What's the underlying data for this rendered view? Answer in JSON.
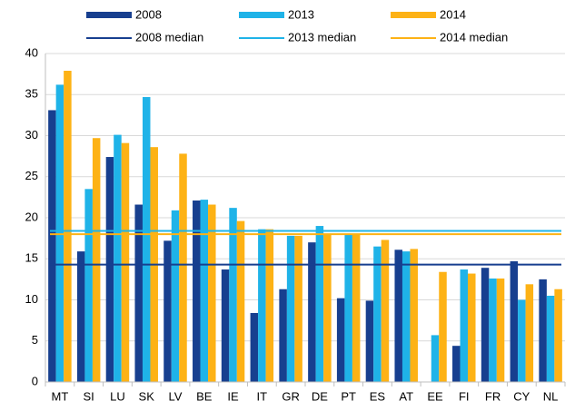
{
  "chart_data": {
    "type": "bar",
    "categories": [
      "MT",
      "SI",
      "LU",
      "SK",
      "LV",
      "BE",
      "IE",
      "IT",
      "GR",
      "DE",
      "PT",
      "ES",
      "AT",
      "EE",
      "FI",
      "FR",
      "CY",
      "NL"
    ],
    "series": [
      {
        "name": "2008",
        "color": "#173f8f",
        "values": [
          33.1,
          15.9,
          27.4,
          21.6,
          17.2,
          22.1,
          13.7,
          8.4,
          11.3,
          17.0,
          10.2,
          9.9,
          16.1,
          null,
          4.4,
          13.9,
          14.7,
          12.5
        ]
      },
      {
        "name": "2013",
        "color": "#1fb3e8",
        "values": [
          36.2,
          23.5,
          30.1,
          34.7,
          20.9,
          22.2,
          21.2,
          18.6,
          17.8,
          19.0,
          18.0,
          16.5,
          15.9,
          5.7,
          13.7,
          12.6,
          10.0,
          10.5
        ]
      },
      {
        "name": "2014",
        "color": "#fdb215",
        "values": [
          37.9,
          29.7,
          29.1,
          28.6,
          27.8,
          21.6,
          19.6,
          18.6,
          17.8,
          18.0,
          18.0,
          17.3,
          16.2,
          13.4,
          13.2,
          12.6,
          11.9,
          11.3
        ]
      }
    ],
    "medians": [
      {
        "name": "2008 median",
        "color": "#173f8f",
        "value": 14.3
      },
      {
        "name": "2013 median",
        "color": "#1fb3e8",
        "value": 18.4
      },
      {
        "name": "2014 median",
        "color": "#fdb215",
        "value": 18.0
      }
    ],
    "ylim": [
      0,
      40
    ],
    "yticks": [
      0,
      5,
      10,
      15,
      20,
      25,
      30,
      35,
      40
    ],
    "grid": true
  }
}
